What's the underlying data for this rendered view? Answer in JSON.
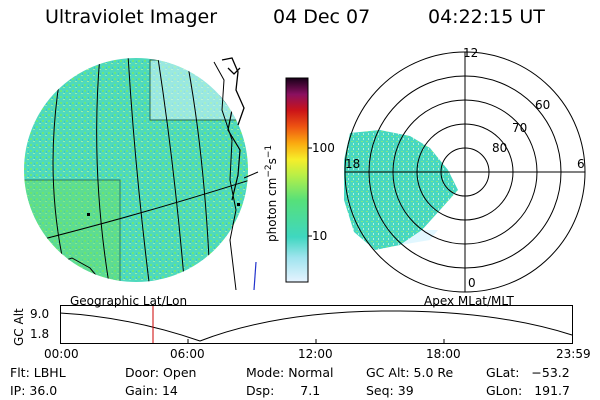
{
  "header": {
    "title": "Ultraviolet Imager",
    "date": "04 Dec 07",
    "time": "04:22:15 UT"
  },
  "colorbar": {
    "unit_main": "photon cm",
    "unit_exp1": "−2",
    "unit_mid": "s",
    "unit_exp2": "−1",
    "ticks": [
      "100",
      "10"
    ]
  },
  "maps": {
    "left_label": "Geographic Lat/Lon",
    "right_label": "Apex MLat/MLT"
  },
  "polar": {
    "mlt_labels": {
      "top": "12",
      "left": "18",
      "right": "6",
      "bottom": "0"
    },
    "lat_labels": [
      "60",
      "70",
      "80"
    ]
  },
  "altitude_plot": {
    "ylabel": "GC Alt",
    "y_ticks": [
      "9.0",
      "1.8"
    ],
    "x_ticks": [
      "00:00",
      "06:00",
      "12:00",
      "18:00",
      "23:59"
    ],
    "marker_time": "04:22"
  },
  "status": {
    "flt_label": "Flt:",
    "flt_value": "LBHL",
    "ip_label": "IP:",
    "ip_value": "36.0",
    "door_label": "Door:",
    "door_value": "Open",
    "gain_label": "Gain:",
    "gain_value": "14",
    "mode_label": "Mode:",
    "mode_value": "Normal",
    "dsp_label": "Dsp:",
    "dsp_value": "7.1",
    "gcalt_label": "GC Alt:",
    "gcalt_value": "5.0 Re",
    "seq_label": "Seq:",
    "seq_value": "39",
    "glat_label": "GLat:",
    "glat_value": "−53.2",
    "glon_label": "GLon:",
    "glon_value": "191.7"
  },
  "colors": {
    "image_fill": "#3fd9b4",
    "image_fill2": "#6ee86a",
    "marker": "#cc0000"
  }
}
